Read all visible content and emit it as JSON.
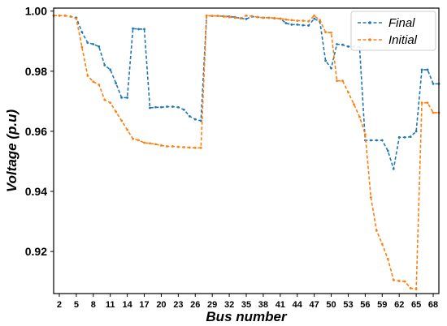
{
  "chart_data": {
    "type": "line",
    "xlabel": "Bus number",
    "ylabel": "Voltage (p.u)",
    "xlim": [
      1,
      69
    ],
    "ylim": [
      0.906,
      1.001
    ],
    "xticks": [
      2,
      5,
      8,
      11,
      14,
      17,
      20,
      23,
      26,
      29,
      32,
      35,
      38,
      41,
      44,
      47,
      50,
      53,
      56,
      59,
      62,
      65,
      68
    ],
    "yticks": [
      0.92,
      0.94,
      0.96,
      0.98,
      1.0
    ],
    "ytick_labels": [
      "0.92",
      "0.94",
      "0.96",
      "0.98",
      "1.00"
    ],
    "legend_position": "top-right",
    "grid": false,
    "x": [
      1,
      2,
      3,
      4,
      5,
      6,
      7,
      8,
      9,
      10,
      11,
      12,
      13,
      14,
      15,
      16,
      17,
      18,
      19,
      20,
      21,
      22,
      23,
      24,
      25,
      26,
      27,
      28,
      29,
      30,
      31,
      32,
      33,
      34,
      35,
      36,
      37,
      38,
      39,
      40,
      41,
      42,
      43,
      44,
      45,
      46,
      47,
      48,
      49,
      50,
      51,
      52,
      53,
      54,
      55,
      56,
      57,
      58,
      59,
      60,
      61,
      62,
      63,
      64,
      65,
      66,
      67,
      68,
      69
    ],
    "series": [
      {
        "name": "Final",
        "color": "#1f77b4",
        "values": [
          0.9985,
          0.9985,
          0.9985,
          0.9982,
          0.9978,
          0.993,
          0.9895,
          0.989,
          0.9882,
          0.982,
          0.9805,
          0.976,
          0.9712,
          0.9712,
          0.9942,
          0.994,
          0.994,
          0.9678,
          0.968,
          0.968,
          0.9682,
          0.9682,
          0.968,
          0.9672,
          0.965,
          0.964,
          0.9635,
          0.9985,
          0.9984,
          0.9984,
          0.9983,
          0.9982,
          0.998,
          0.9976,
          0.9974,
          0.9982,
          0.998,
          0.9978,
          0.9978,
          0.9976,
          0.9975,
          0.996,
          0.9955,
          0.9955,
          0.9953,
          0.9952,
          0.9975,
          0.9965,
          0.9835,
          0.981,
          0.989,
          0.9888,
          0.9882,
          0.9882,
          0.988,
          0.957,
          0.957,
          0.957,
          0.957,
          0.9535,
          0.9475,
          0.958,
          0.958,
          0.9582,
          0.96,
          0.9805,
          0.9805,
          0.9758,
          0.9758
        ]
      },
      {
        "name": "Initial",
        "color": "#ff7f0e",
        "values": [
          0.9985,
          0.9985,
          0.9985,
          0.9982,
          0.9975,
          0.988,
          0.9785,
          0.9765,
          0.9755,
          0.9705,
          0.9695,
          0.9665,
          0.9635,
          0.9605,
          0.9575,
          0.957,
          0.9562,
          0.956,
          0.9557,
          0.9553,
          0.955,
          0.955,
          0.9548,
          0.9547,
          0.9546,
          0.9545,
          0.9545,
          0.9985,
          0.9984,
          0.9984,
          0.9982,
          0.998,
          0.9978,
          0.9976,
          0.9985,
          0.9983,
          0.998,
          0.9978,
          0.9978,
          0.9977,
          0.9975,
          0.9972,
          0.997,
          0.9968,
          0.9968,
          0.9966,
          0.9985,
          0.997,
          0.993,
          0.9928,
          0.9768,
          0.9768,
          0.973,
          0.969,
          0.9648,
          0.959,
          0.938,
          0.927,
          0.9225,
          0.9175,
          0.9105,
          0.9102,
          0.91,
          0.9078,
          0.9075,
          0.9695,
          0.9695,
          0.9662,
          0.9662
        ]
      }
    ]
  }
}
